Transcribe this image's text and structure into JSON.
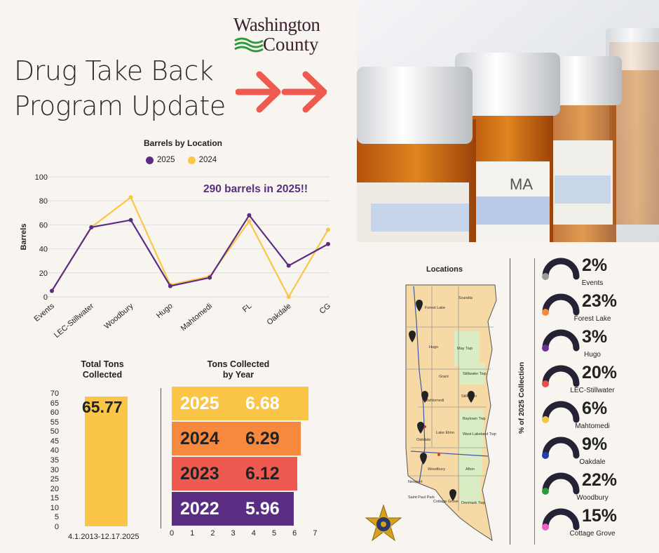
{
  "title": {
    "line1": "Drug Take Back",
    "line2": "Program Update"
  },
  "logo": {
    "line1": "Washington",
    "line2": "County"
  },
  "colors": {
    "purple": "#5b2d82",
    "yellow": "#fbc647",
    "orange": "#f7893f",
    "red": "#ee5a4f",
    "deep_purple": "#5a2d82",
    "bg": "#f8f5f1"
  },
  "line_chart": {
    "chart_data": {
      "type": "line",
      "title": "Barrels by Location",
      "categories": [
        "Events",
        "LEC-Stillwater",
        "Woodbury",
        "Hugo",
        "Mahtomedi",
        "FL",
        "Oakdale",
        "CG"
      ],
      "series": [
        {
          "name": "2025",
          "values": [
            5,
            58,
            64,
            9,
            16,
            68,
            26,
            44
          ]
        },
        {
          "name": "2024",
          "values": [
            5,
            58,
            83,
            10,
            17,
            63,
            0,
            56
          ]
        }
      ],
      "ylabel": "Barrels",
      "ylim": [
        0,
        100
      ],
      "yticks": [
        0,
        20,
        40,
        60,
        80,
        100
      ]
    },
    "callout": "290 barrels in 2025!!"
  },
  "total_tons": {
    "title_line1": "Total Tons",
    "title_line2": "Collected",
    "value": 65.77,
    "value_label": "65.77",
    "range": "4.1.2013-12.17.2025",
    "yticks": [
      0,
      5,
      10,
      15,
      20,
      25,
      30,
      35,
      40,
      45,
      50,
      55,
      60,
      65,
      70
    ]
  },
  "tons_by_year": {
    "title_line1": "Tons Collected",
    "title_line2": "by Year",
    "bars": [
      {
        "year": "2025",
        "value": 6.68,
        "label": "6.68",
        "color": "#fbc647",
        "text_color": "#ffffff"
      },
      {
        "year": "2024",
        "value": 6.29,
        "label": "6.29",
        "color": "#f7893f",
        "text_color": "#222222"
      },
      {
        "year": "2023",
        "value": 6.12,
        "label": "6.12",
        "color": "#ee5a4f",
        "text_color": "#222222"
      },
      {
        "year": "2022",
        "value": 5.96,
        "label": "5.96",
        "color": "#5a2d82",
        "text_color": "#ffffff"
      }
    ],
    "xticks": [
      0,
      1,
      2,
      3,
      4,
      5,
      6,
      7
    ],
    "xlim": [
      0,
      7
    ]
  },
  "map": {
    "title": "Locations",
    "labels": [
      "Forest Lake",
      "Scandia",
      "Hugo",
      "May Twp",
      "Grant",
      "Stillwater Twp",
      "Mahtomedi",
      "Stillwater",
      "Oakdale",
      "Lake Elmo",
      "Baytown Twp",
      "West Lakeland Twp",
      "Woodbury",
      "Afton",
      "Cottage Grove",
      "Denmark Twp",
      "Saint Paul Park",
      "Newport"
    ]
  },
  "percent_panel": {
    "axis_label": "% of 2025 Collection",
    "items": [
      {
        "pct": 2,
        "label": "2%",
        "name": "Events",
        "dot": "#9a9a9a"
      },
      {
        "pct": 23,
        "label": "23%",
        "name": "Forest Lake",
        "dot": "#f7893f"
      },
      {
        "pct": 3,
        "label": "3%",
        "name": "Hugo",
        "dot": "#6b2fa0"
      },
      {
        "pct": 20,
        "label": "20%",
        "name": "LEC-Stillwater",
        "dot": "#ee4b4b"
      },
      {
        "pct": 6,
        "label": "6%",
        "name": "Mahtomedi",
        "dot": "#f5c542"
      },
      {
        "pct": 9,
        "label": "9%",
        "name": "Oakdale",
        "dot": "#2340a8"
      },
      {
        "pct": 22,
        "label": "22%",
        "name": "Woodbury",
        "dot": "#2e9a3e"
      },
      {
        "pct": 15,
        "label": "15%",
        "name": "Cottage Grove",
        "dot": "#ef5bc7"
      }
    ]
  }
}
